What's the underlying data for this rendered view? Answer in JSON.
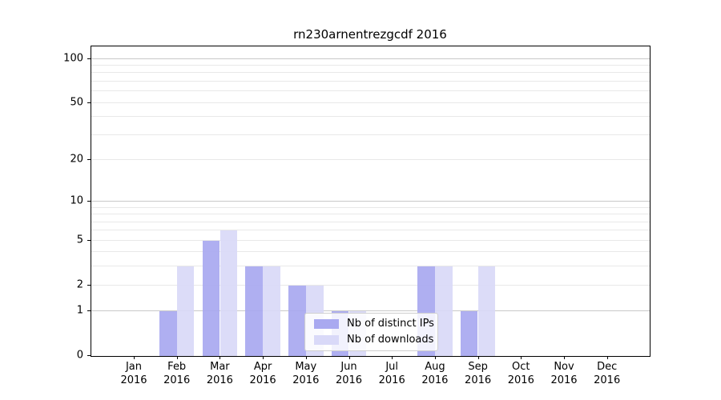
{
  "title": "rn230arnentrezgcdf 2016",
  "chart_data": {
    "type": "bar",
    "title": "rn230arnentrezgcdf 2016",
    "categories": [
      "Jan",
      "Feb",
      "Mar",
      "Apr",
      "May",
      "Jun",
      "Jul",
      "Aug",
      "Sep",
      "Oct",
      "Nov",
      "Dec"
    ],
    "year": "2016",
    "series": [
      {
        "name": "Nb of distinct IPs",
        "color": "#a9a9f0",
        "values": [
          0,
          1,
          5,
          3,
          2,
          1,
          0,
          3,
          1,
          0,
          0,
          0
        ]
      },
      {
        "name": "Nb of downloads",
        "color": "#d9d9f8",
        "values": [
          0,
          3,
          6,
          3,
          2,
          1,
          0,
          3,
          3,
          0,
          0,
          0
        ]
      }
    ],
    "y_scale": "log1p",
    "ylim": [
      0,
      100
    ],
    "y_ticks": [
      0,
      1,
      2,
      5,
      10,
      20,
      50,
      100
    ],
    "y_major_gridlines": [
      1,
      10,
      100
    ],
    "y_minor_gridlines": [
      2,
      3,
      4,
      5,
      6,
      7,
      8,
      9,
      20,
      30,
      40,
      50,
      60,
      70,
      80,
      90
    ],
    "xlabel": "",
    "ylabel": "",
    "grid": "horizontal",
    "legend_position": "lower-center"
  },
  "colors": {
    "series_distinct_ips": "#a9a9f0",
    "series_downloads": "#d9d9f8",
    "major_grid": "#c9c9c9",
    "minor_grid": "#e8e8e8",
    "axis": "#000000",
    "legend_border": "#cfcfcf"
  }
}
